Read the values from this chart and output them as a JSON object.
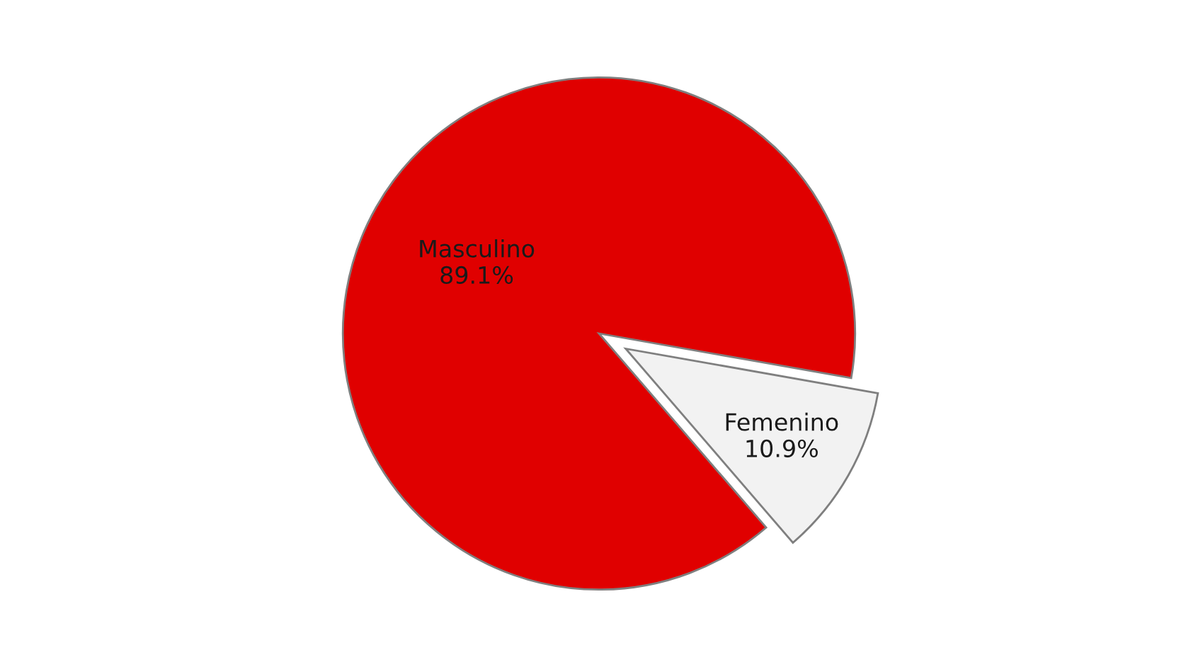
{
  "chart_data": {
    "type": "pie",
    "categories": [
      "Masculino",
      "Femenino"
    ],
    "values": [
      89.1,
      10.9
    ],
    "value_labels": [
      "89.1%",
      "10.9%"
    ],
    "colors": [
      "#e00000",
      "#f2f2f2"
    ]
  }
}
